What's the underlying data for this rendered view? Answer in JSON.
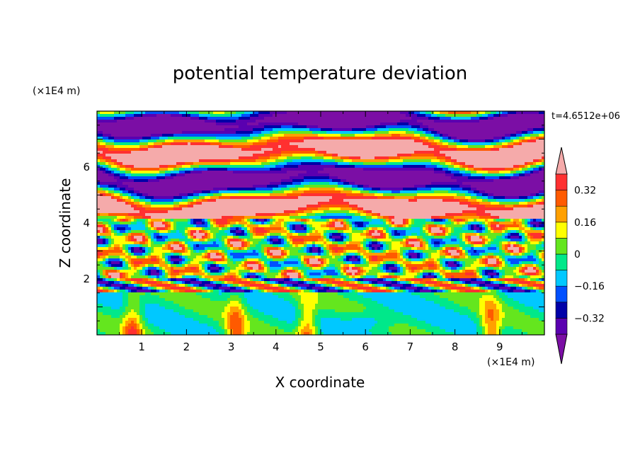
{
  "chart_data": {
    "type": "heatmap",
    "title": "potential temperature deviation",
    "time_label": "t=4.6512e+06",
    "xlabel": "X coordinate",
    "ylabel": "Z coordinate",
    "x_unit": "(×1E4 m)",
    "y_unit": "(×1E4 m)",
    "xlim": [
      0,
      10
    ],
    "ylim": [
      0,
      8
    ],
    "x_ticks": [
      1,
      2,
      3,
      4,
      5,
      6,
      7,
      8,
      9
    ],
    "y_ticks": [
      2,
      4,
      6
    ],
    "colorbar": {
      "levels": [
        -0.4,
        -0.32,
        -0.24,
        -0.16,
        -0.08,
        0,
        0.08,
        0.16,
        0.24,
        0.32,
        0.4
      ],
      "labels": [
        "−0.32",
        "−0.16",
        "0",
        "0.16",
        "0.32"
      ],
      "label_values": [
        -0.32,
        -0.16,
        0,
        0.16,
        0.32
      ],
      "colors": [
        "#7b0ea5",
        "#5a00b0",
        "#0000a8",
        "#0050ff",
        "#00c8ff",
        "#00e88a",
        "#64e61e",
        "#ffff00",
        "#ffa000",
        "#ff5a00",
        "#ff3030",
        "#f5aaaa"
      ],
      "over_color": "#f5aaaa",
      "under_color": "#7b0ea5"
    }
  }
}
